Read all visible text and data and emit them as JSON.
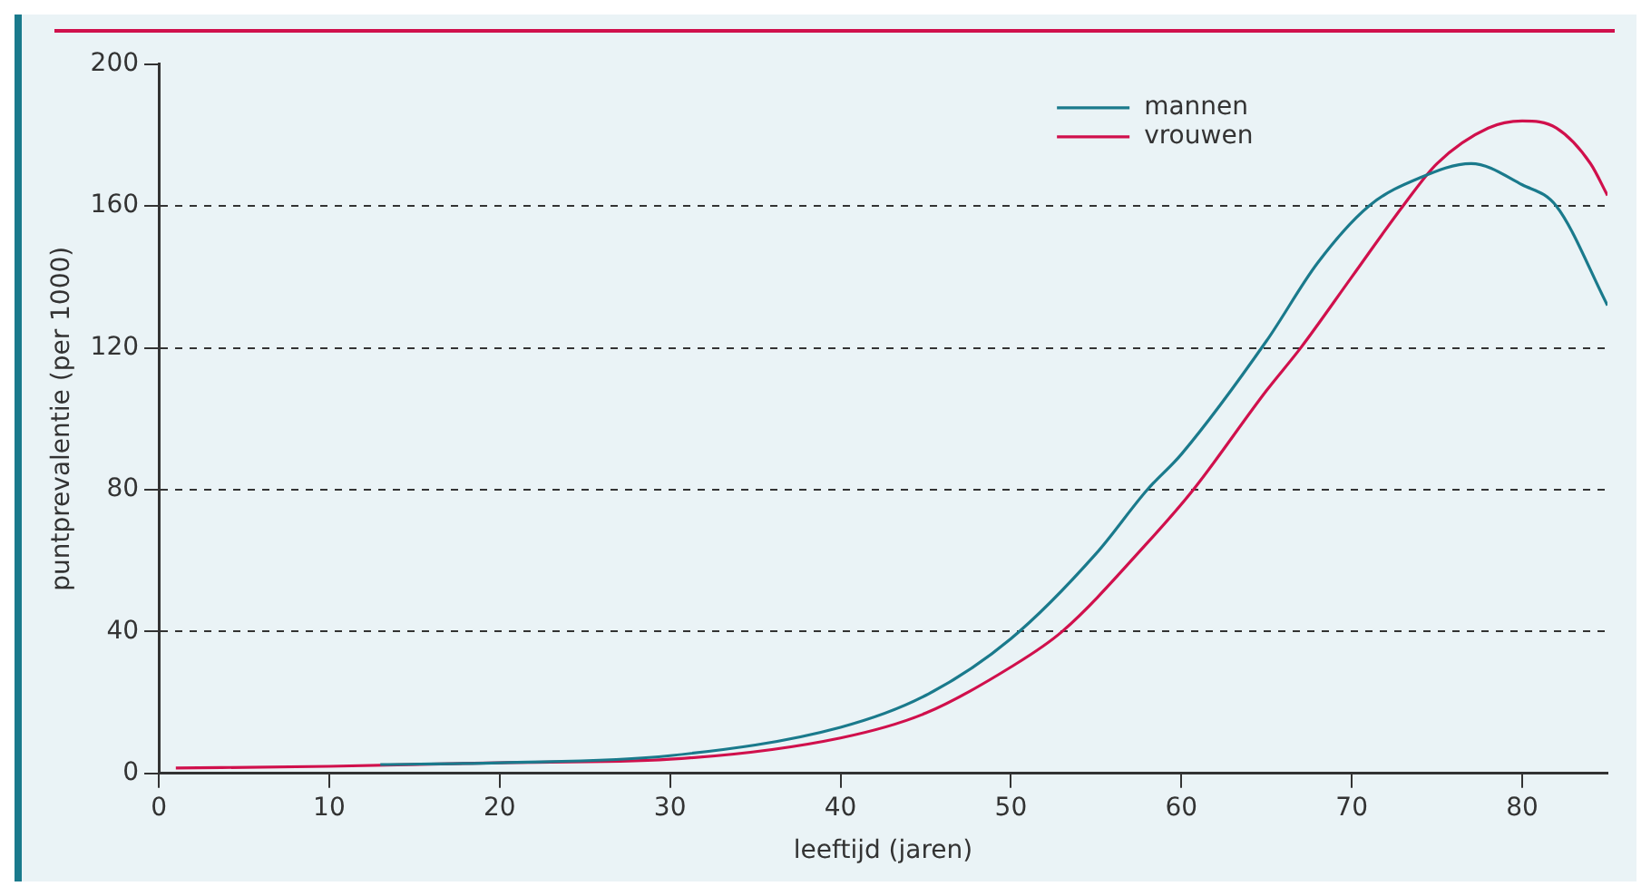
{
  "chart_data": {
    "type": "line",
    "xlabel": "leeftijd (jaren)",
    "ylabel": "puntprevalentie (per 1000)",
    "xlim": [
      0,
      85
    ],
    "xticks": [
      0,
      10,
      20,
      30,
      40,
      50,
      60,
      70,
      80
    ],
    "ylim": [
      0,
      200
    ],
    "yticks": [
      0,
      40,
      80,
      120,
      160,
      200
    ],
    "grid": "y",
    "legend": "top right",
    "line_style": "solid",
    "marker": "none",
    "series": [
      {
        "name": "mannen",
        "color": "#1a7a8c",
        "x": [
          13,
          20,
          30,
          40,
          45,
          50,
          55,
          58,
          60,
          65,
          68,
          71,
          74,
          77,
          80,
          82,
          85
        ],
        "values": [
          2.5,
          3,
          5,
          13,
          22,
          38,
          62,
          80,
          90,
          122,
          144,
          160,
          168,
          172,
          166,
          160,
          132
        ]
      },
      {
        "name": "vrouwen",
        "color": "#d0104c",
        "x": [
          1,
          10,
          20,
          30,
          40,
          45,
          50,
          53,
          58,
          60.7,
          65,
          67,
          70,
          73,
          75,
          78,
          80,
          82,
          84,
          85
        ],
        "values": [
          1.5,
          2,
          3,
          4,
          10,
          17,
          30,
          40,
          65,
          80,
          108,
          120,
          140,
          160,
          172,
          182,
          184,
          182,
          172,
          163
        ]
      }
    ]
  }
}
